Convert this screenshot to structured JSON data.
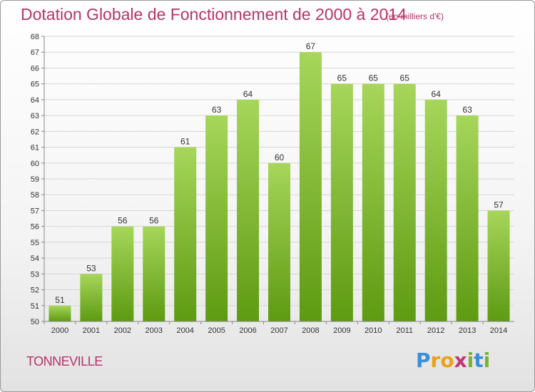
{
  "header": {
    "title": "Dotation Globale de Fonctionnement de 2000 à 2014",
    "subtitle": "(en milliers d'€)"
  },
  "footer": {
    "city": "TONNEVILLE",
    "logo_text": "Proxiti"
  },
  "colors": {
    "bar_light": "#a6d65a",
    "bar_dark": "#5e9a12",
    "title": "#b8336a"
  },
  "chart_data": {
    "type": "bar",
    "title": "Dotation Globale de Fonctionnement de 2000 à 2014",
    "subtitle": "(en milliers d'€)",
    "categories": [
      "2000",
      "2001",
      "2002",
      "2003",
      "2004",
      "2005",
      "2006",
      "2007",
      "2008",
      "2009",
      "2010",
      "2011",
      "2012",
      "2013",
      "2014"
    ],
    "values": [
      51,
      53,
      56,
      56,
      61,
      63,
      64,
      60,
      67,
      65,
      65,
      65,
      64,
      63,
      57
    ],
    "ylim": [
      50,
      68
    ],
    "yticks": [
      50,
      51,
      52,
      53,
      54,
      55,
      56,
      57,
      58,
      59,
      60,
      61,
      62,
      63,
      64,
      65,
      66,
      67,
      68
    ],
    "grid": true,
    "data_labels": true
  }
}
